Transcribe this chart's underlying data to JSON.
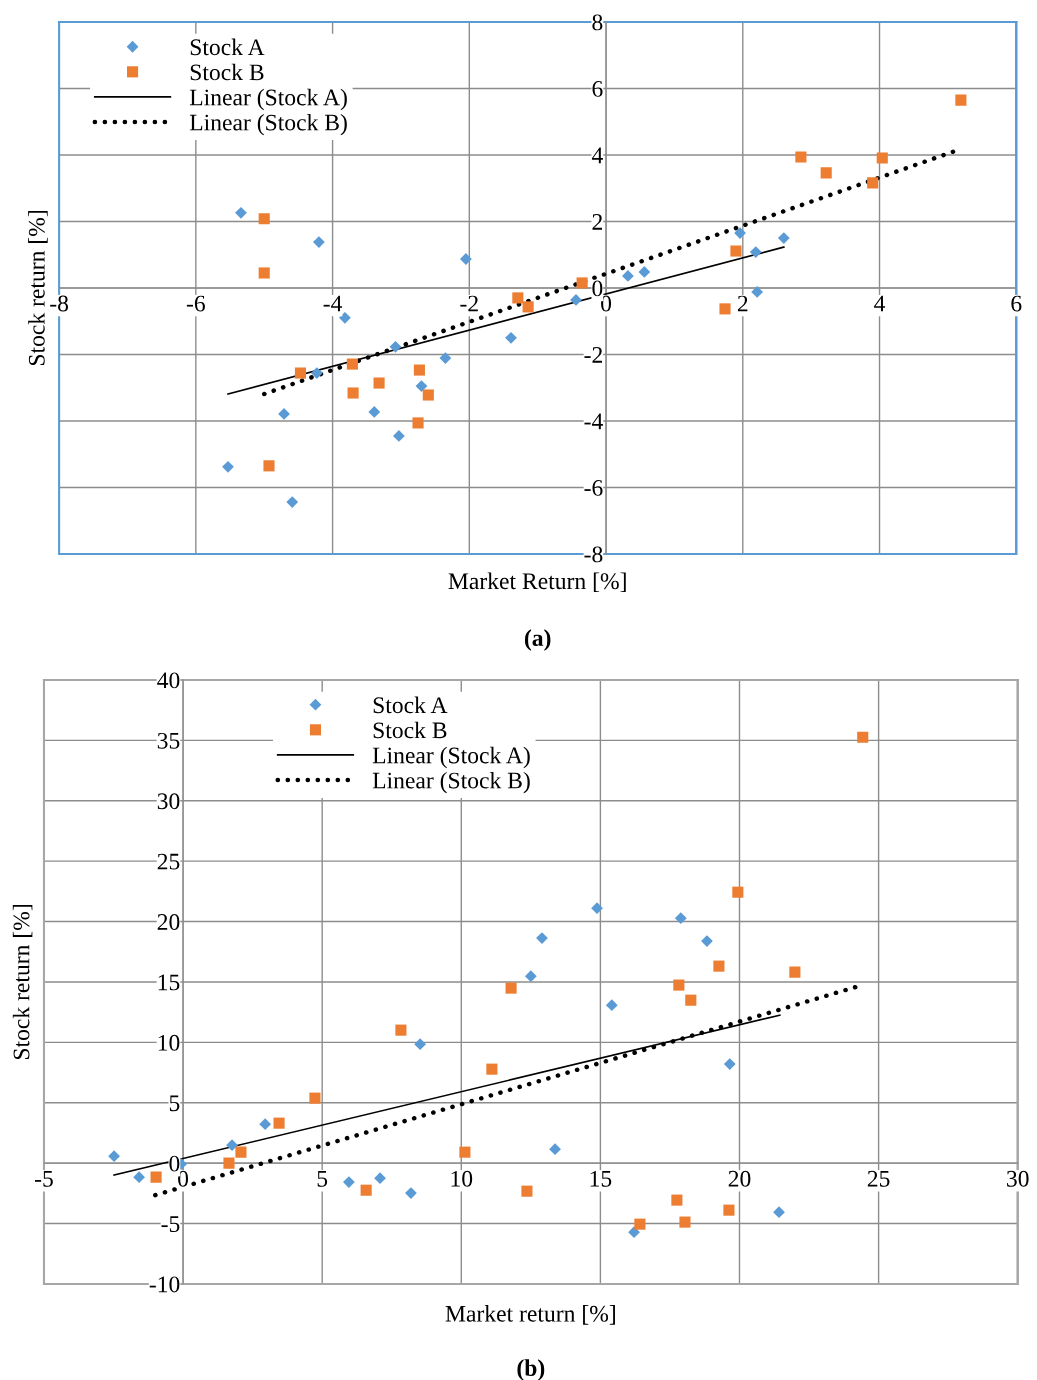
{
  "chart_data": [
    {
      "type": "scatter",
      "xlabel": "Market Return [%]",
      "ylabel": "Stock return [%]",
      "xlim": [
        -8,
        6
      ],
      "xticks": [
        -8,
        -6,
        -4,
        -2,
        0,
        2,
        4,
        6
      ],
      "ylim": [
        -8,
        8
      ],
      "yticks": [
        -8,
        -6,
        -4,
        -2,
        0,
        2,
        4,
        6,
        8
      ],
      "grid": true,
      "legend": "top left",
      "annotations": [
        "(a)"
      ],
      "series": [
        {
          "name": "Stock A",
          "color": "#5b9bd5",
          "marker": "diamond",
          "x": [
            -5.34,
            -4.2,
            -2.05,
            -3.82,
            -3.08,
            -1.39,
            -2.35,
            -4.23,
            -2.7,
            -4.71,
            -3.39,
            -3.03,
            -5.53,
            -4.59,
            -0.44,
            0.32,
            0.56,
            1.96,
            2.19,
            2.21,
            2.6
          ],
          "values": [
            2.26,
            1.38,
            0.87,
            -0.9,
            -1.77,
            -1.5,
            -2.11,
            -2.56,
            -2.95,
            -3.79,
            -3.73,
            -4.45,
            -5.38,
            -6.44,
            -0.36,
            0.36,
            0.48,
            1.65,
            1.08,
            -0.12,
            1.5
          ]
        },
        {
          "name": "Stock B",
          "color": "#ed7d31",
          "marker": "square",
          "x": [
            -5.0,
            -5.0,
            -4.47,
            -3.71,
            -3.7,
            -3.32,
            -2.73,
            -2.6,
            -2.75,
            -4.93,
            -1.29,
            -1.14,
            -0.35,
            1.74,
            1.9,
            2.85,
            3.22,
            3.9,
            4.04,
            5.19
          ],
          "values": [
            2.08,
            0.45,
            -2.56,
            -2.29,
            -3.16,
            -2.86,
            -2.47,
            -3.22,
            -4.06,
            -5.35,
            -0.3,
            -0.57,
            0.15,
            -0.63,
            1.11,
            3.94,
            3.46,
            3.16,
            3.91,
            5.65
          ]
        },
        {
          "name": "Linear (Stock A)",
          "type": "line",
          "color": "#000000",
          "line_style": "solid",
          "x": [
            -5.53,
            2.6
          ],
          "values": [
            -3.19,
            1.23
          ]
        },
        {
          "name": "Linear (Stock B)",
          "type": "line",
          "color": "#000000",
          "line_style": "dotted",
          "x": [
            -5.0,
            5.15
          ],
          "values": [
            -3.19,
            4.15
          ]
        }
      ]
    },
    {
      "type": "scatter",
      "xlabel": "Market return [%]",
      "ylabel": "Stock return [%]",
      "xlim": [
        -5,
        30
      ],
      "xticks": [
        -5,
        0,
        5,
        10,
        15,
        20,
        25,
        30
      ],
      "ylim": [
        -10,
        40
      ],
      "yticks": [
        -10,
        -5,
        0,
        5,
        10,
        15,
        20,
        25,
        30,
        35,
        40
      ],
      "grid": true,
      "legend": "top",
      "annotations": [
        "(b)"
      ],
      "series": [
        {
          "name": "Stock A",
          "color": "#5b9bd5",
          "marker": "diamond",
          "x": [
            -2.48,
            -1.58,
            -0.07,
            1.76,
            2.95,
            8.52,
            12.5,
            12.9,
            14.88,
            15.41,
            17.89,
            18.83,
            19.65,
            13.37,
            5.96,
            7.08,
            8.19,
            16.21,
            21.42
          ],
          "values": [
            0.58,
            -1.16,
            -0.08,
            1.49,
            3.23,
            9.85,
            15.48,
            18.63,
            21.11,
            13.08,
            20.28,
            18.38,
            8.2,
            1.16,
            -1.57,
            -1.24,
            -2.48,
            -5.71,
            -4.06
          ]
        },
        {
          "name": "Stock B",
          "color": "#ed7d31",
          "marker": "square",
          "x": [
            -0.97,
            1.65,
            2.08,
            3.45,
            4.74,
            6.58,
            7.83,
            10.13,
            11.1,
            11.79,
            12.36,
            16.42,
            17.75,
            17.82,
            18.04,
            18.25,
            19.26,
            19.62,
            19.94,
            21.99,
            24.43
          ],
          "values": [
            -1.16,
            0.0,
            0.91,
            3.31,
            5.38,
            -2.24,
            11.01,
            0.91,
            7.78,
            14.49,
            -2.32,
            -5.05,
            -3.06,
            14.74,
            -4.88,
            13.49,
            16.31,
            -3.89,
            22.43,
            15.81,
            35.26
          ]
        },
        {
          "name": "Linear (Stock A)",
          "type": "line",
          "color": "#000000",
          "line_style": "solid",
          "x": [
            -2.48,
            21.45
          ],
          "values": [
            -0.99,
            12.25
          ]
        },
        {
          "name": "Linear (Stock B)",
          "type": "line",
          "color": "#000000",
          "line_style": "dotted",
          "x": [
            -1.0,
            24.4
          ],
          "values": [
            -2.65,
            14.73
          ]
        }
      ]
    }
  ]
}
